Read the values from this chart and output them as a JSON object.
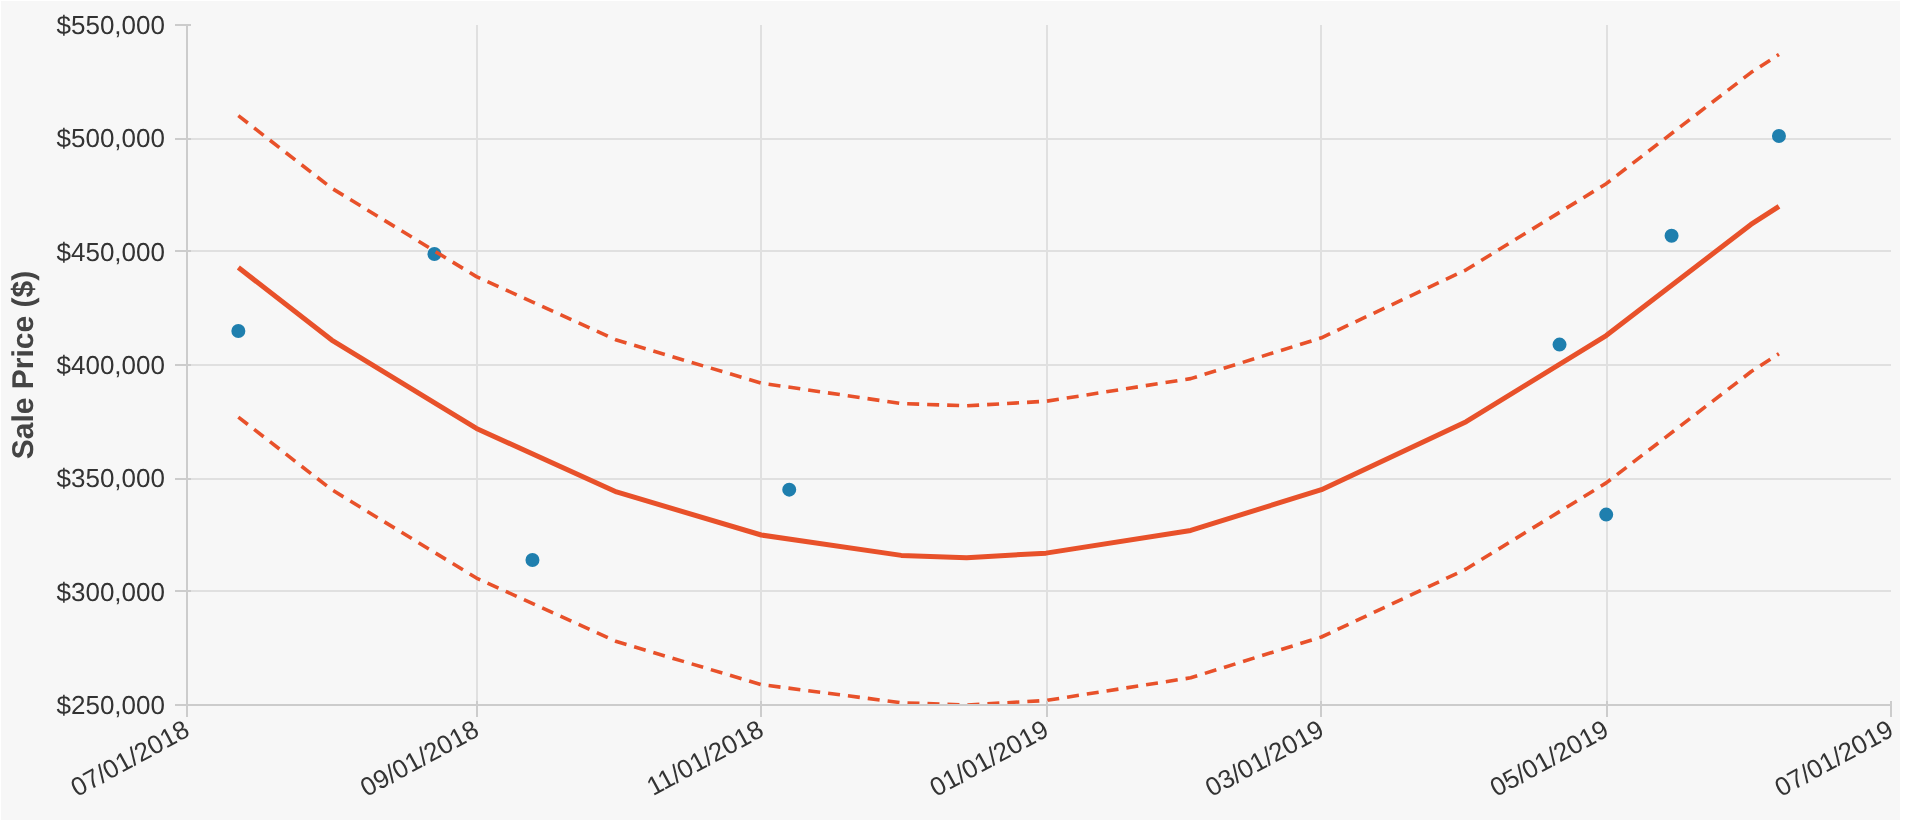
{
  "chart_data": {
    "type": "scatter",
    "ylabel": "Sale Price ($)",
    "xlim": [
      "2018-07-01",
      "2019-07-01"
    ],
    "xticks": [
      {
        "value": "2018-07-01",
        "label": "07/01/2018"
      },
      {
        "value": "2018-09-01",
        "label": "09/01/2018"
      },
      {
        "value": "2018-11-01",
        "label": "11/01/2018"
      },
      {
        "value": "2019-01-01",
        "label": "01/01/2019"
      },
      {
        "value": "2019-03-01",
        "label": "03/01/2019"
      },
      {
        "value": "2019-05-01",
        "label": "05/01/2019"
      },
      {
        "value": "2019-07-01",
        "label": "07/01/2019"
      }
    ],
    "ylim": [
      250000,
      550000
    ],
    "yticks": [
      {
        "value": 250000,
        "label": "$250,000"
      },
      {
        "value": 300000,
        "label": "$300,000"
      },
      {
        "value": 350000,
        "label": "$350,000"
      },
      {
        "value": 400000,
        "label": "$400,000"
      },
      {
        "value": 450000,
        "label": "$450,000"
      },
      {
        "value": 500000,
        "label": "$500,000"
      },
      {
        "value": 550000,
        "label": "$550,000"
      }
    ],
    "grid": true,
    "series": [
      {
        "color": "#1f7fae",
        "marker": "circle",
        "x": [
          "2018-07-12",
          "2018-08-23",
          "2018-09-13",
          "2018-11-07",
          "2019-04-21",
          "2019-05-01",
          "2019-05-15",
          "2019-06-07"
        ],
        "values": [
          415000,
          449000,
          314000,
          345000,
          409000,
          334000,
          457000,
          501000
        ]
      },
      {
        "type": "line",
        "color": "#e8512a",
        "line_style": "solid",
        "x": [
          "2018-07-12",
          "2018-08-01",
          "2018-09-01",
          "2018-10-01",
          "2018-11-01",
          "2018-12-01",
          "2018-12-15",
          "2019-01-01",
          "2019-02-01",
          "2019-03-01",
          "2019-04-01",
          "2019-05-01",
          "2019-06-01",
          "2019-06-07"
        ],
        "values": [
          443000,
          411000,
          372000,
          344000,
          325000,
          316000,
          315000,
          317000,
          327000,
          345000,
          375000,
          413000,
          462000,
          470000
        ]
      },
      {
        "type": "line",
        "color": "#e8512a",
        "line_style": "dashed",
        "x": [
          "2018-07-12",
          "2018-08-01",
          "2018-09-01",
          "2018-10-01",
          "2018-11-01",
          "2018-12-01",
          "2018-12-15",
          "2019-01-01",
          "2019-02-01",
          "2019-03-01",
          "2019-04-01",
          "2019-05-01",
          "2019-06-01",
          "2019-06-07"
        ],
        "values": [
          510000,
          478000,
          439000,
          411000,
          392000,
          383000,
          382000,
          384000,
          394000,
          412000,
          442000,
          480000,
          529000,
          537000
        ]
      },
      {
        "type": "line",
        "color": "#e8512a",
        "line_style": "dashed",
        "x": [
          "2018-07-12",
          "2018-08-01",
          "2018-09-01",
          "2018-10-01",
          "2018-11-01",
          "2018-12-01",
          "2018-12-15",
          "2019-01-01",
          "2019-02-01",
          "2019-03-01",
          "2019-04-01",
          "2019-05-01",
          "2019-06-01",
          "2019-06-07"
        ],
        "values": [
          377000,
          345000,
          306000,
          278000,
          259000,
          251000,
          250000,
          252000,
          262000,
          280000,
          310000,
          348000,
          397000,
          405000
        ]
      }
    ]
  }
}
